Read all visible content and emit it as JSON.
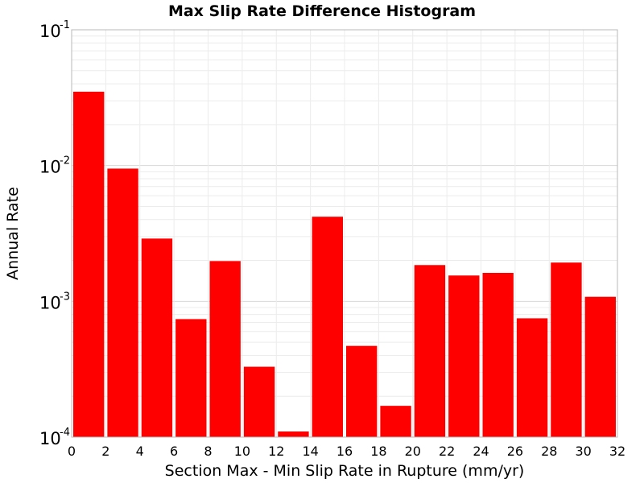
{
  "chart_data": {
    "type": "bar",
    "title": "Max Slip Rate Difference Histogram",
    "xlabel": "Section Max - Min Slip Rate in Rupture (mm/yr)",
    "ylabel": "Annual Rate",
    "xlim": [
      0,
      32
    ],
    "ylim": [
      0.0001,
      0.1
    ],
    "yscale": "log",
    "bin_width": 2,
    "bar_color": "#ff0000",
    "grid": true,
    "x_ticks": [
      "0",
      "2",
      "4",
      "6",
      "8",
      "10",
      "12",
      "14",
      "16",
      "18",
      "20",
      "22",
      "24",
      "26",
      "28",
      "30",
      "32"
    ],
    "y_ticks": [
      {
        "value": 0.1,
        "base": "10",
        "exp": "-1"
      },
      {
        "value": 0.01,
        "base": "10",
        "exp": "-2"
      },
      {
        "value": 0.001,
        "base": "10",
        "exp": "-3"
      },
      {
        "value": 0.0001,
        "base": "10",
        "exp": "-4"
      }
    ],
    "bins": [
      {
        "x0": 0,
        "x1": 2,
        "value": 0.035
      },
      {
        "x0": 2,
        "x1": 4,
        "value": 0.0095
      },
      {
        "x0": 4,
        "x1": 6,
        "value": 0.0029
      },
      {
        "x0": 6,
        "x1": 8,
        "value": 0.00074
      },
      {
        "x0": 8,
        "x1": 10,
        "value": 0.00198
      },
      {
        "x0": 10,
        "x1": 12,
        "value": 0.00033
      },
      {
        "x0": 12,
        "x1": 14,
        "value": 0.00011
      },
      {
        "x0": 14,
        "x1": 16,
        "value": 0.0042
      },
      {
        "x0": 16,
        "x1": 18,
        "value": 0.00047
      },
      {
        "x0": 18,
        "x1": 20,
        "value": 0.00017
      },
      {
        "x0": 20,
        "x1": 22,
        "value": 0.00185
      },
      {
        "x0": 22,
        "x1": 24,
        "value": 0.00155
      },
      {
        "x0": 24,
        "x1": 26,
        "value": 0.00162
      },
      {
        "x0": 26,
        "x1": 28,
        "value": 0.00075
      },
      {
        "x0": 28,
        "x1": 30,
        "value": 0.00193
      },
      {
        "x0": 30,
        "x1": 32,
        "value": 0.00108
      }
    ]
  }
}
